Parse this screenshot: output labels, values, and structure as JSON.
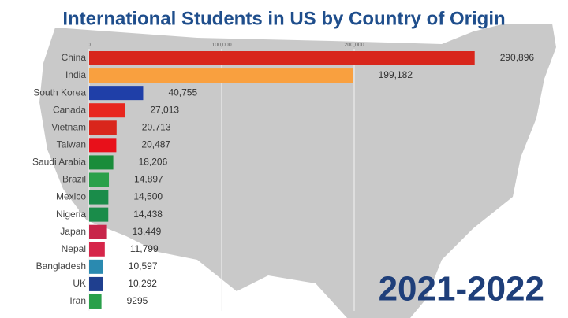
{
  "chart_data": {
    "type": "barh",
    "title": "International Students in US by Country of Origin",
    "annotation": "2021-2022",
    "categories": [
      "China",
      "India",
      "South Korea",
      "Canada",
      "Vietnam",
      "Taiwan",
      "Saudi Arabia",
      "Brazil",
      "Mexico",
      "Nigeria",
      "Japan",
      "Nepal",
      "Bangladesh",
      "UK",
      "Iran"
    ],
    "values": [
      290896,
      199182,
      40755,
      27013,
      20713,
      20487,
      18206,
      14897,
      14500,
      14438,
      13449,
      11799,
      10597,
      10292,
      9295
    ],
    "value_labels": [
      "290,896",
      "199,182",
      "40,755",
      "27,013",
      "20,713",
      "20,487",
      "18,206",
      "14,897",
      "14,500",
      "14,438",
      "13,449",
      "11,799",
      "10,597",
      "10,292",
      "9295"
    ],
    "colors": [
      "#d8261c",
      "#f9a03f",
      "#1f3fa8",
      "#e8261e",
      "#d9261c",
      "#e8101a",
      "#1a8c3a",
      "#2aa04a",
      "#1a8c4a",
      "#1a8c4a",
      "#c8254a",
      "#d6264a",
      "#2a8ab0",
      "#1f3f8f",
      "#2aa04a"
    ],
    "xlim": [
      0,
      300000
    ],
    "xticks": [
      0,
      {
        "value": 100000,
        "label": "100,000"
      },
      {
        "value": 200000,
        "label": "200,000"
      }
    ],
    "grid": true
  }
}
